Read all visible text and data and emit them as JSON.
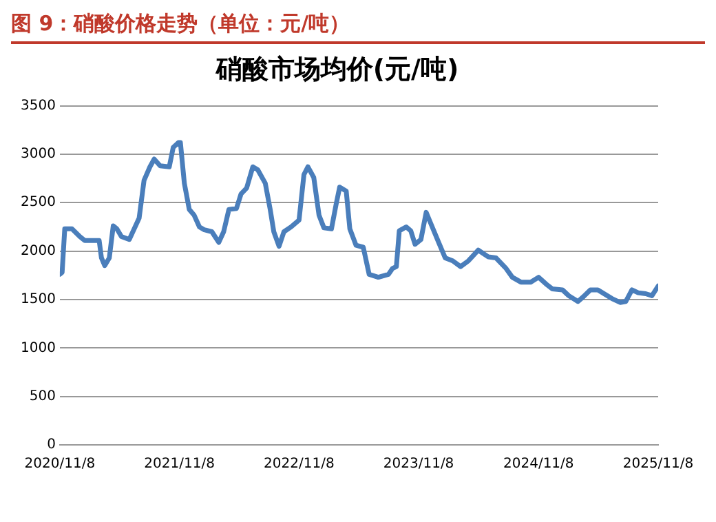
{
  "chart_data": {
    "type": "line",
    "title": "图 9：硝酸价格走势（单位：元/吨）",
    "subtitle": "硝酸市场均价(元/吨)",
    "x": [
      "2020-11-08",
      "2020-11-15",
      "2020-11-23",
      "2020-12-15",
      "2021-01-08",
      "2021-01-23",
      "2021-03-08",
      "2021-03-15",
      "2021-03-25",
      "2021-04-08",
      "2021-04-20",
      "2021-05-01",
      "2021-05-15",
      "2021-06-08",
      "2021-06-23",
      "2021-07-08",
      "2021-07-23",
      "2021-08-10",
      "2021-08-23",
      "2021-09-10",
      "2021-10-08",
      "2021-10-20",
      "2021-11-05",
      "2021-11-11",
      "2021-11-23",
      "2021-12-08",
      "2021-12-23",
      "2022-01-08",
      "2022-01-23",
      "2022-02-15",
      "2022-03-08",
      "2022-03-23",
      "2022-04-08",
      "2022-05-01",
      "2022-05-15",
      "2022-06-01",
      "2022-06-20",
      "2022-07-05",
      "2022-07-28",
      "2022-08-12",
      "2022-08-23",
      "2022-09-08",
      "2022-09-23",
      "2022-10-15",
      "2022-11-08",
      "2022-11-23",
      "2022-12-05",
      "2022-12-23",
      "2023-01-08",
      "2023-01-23",
      "2023-02-15",
      "2023-03-01",
      "2023-03-12",
      "2023-04-01",
      "2023-04-12",
      "2023-05-01",
      "2023-05-23",
      "2023-06-10",
      "2023-07-08",
      "2023-08-08",
      "2023-08-20",
      "2023-09-01",
      "2023-09-10",
      "2023-10-01",
      "2023-10-15",
      "2023-10-28",
      "2023-11-15",
      "2023-12-01",
      "2023-12-12",
      "2024-01-08",
      "2024-01-28",
      "2024-02-20",
      "2024-03-15",
      "2024-04-08",
      "2024-05-08",
      "2024-06-08",
      "2024-07-01",
      "2024-08-01",
      "2024-08-20",
      "2024-09-15",
      "2024-10-15",
      "2024-11-08",
      "2024-12-01",
      "2024-12-20",
      "2025-01-20",
      "2025-02-08",
      "2025-03-08",
      "2025-03-25",
      "2025-04-15",
      "2025-05-08",
      "2025-06-01",
      "2025-06-20",
      "2025-07-15",
      "2025-08-01",
      "2025-08-20",
      "2025-09-08",
      "2025-10-01",
      "2025-10-20",
      "2025-11-08"
    ],
    "series": [
      {
        "color": "#4a7ebb",
        "values": [
          1760,
          1780,
          2230,
          2230,
          2150,
          2110,
          2110,
          1930,
          1850,
          1930,
          2260,
          2230,
          2150,
          2120,
          2230,
          2340,
          2730,
          2870,
          2950,
          2880,
          2870,
          3070,
          3120,
          3120,
          2700,
          2430,
          2370,
          2250,
          2220,
          2200,
          2090,
          2200,
          2430,
          2440,
          2590,
          2650,
          2870,
          2840,
          2700,
          2430,
          2200,
          2050,
          2200,
          2250,
          2320,
          2790,
          2870,
          2760,
          2370,
          2240,
          2230,
          2480,
          2660,
          2620,
          2230,
          2060,
          2040,
          1760,
          1730,
          1760,
          1820,
          1840,
          2210,
          2250,
          2210,
          2070,
          2120,
          2400,
          2310,
          2090,
          1930,
          1900,
          1840,
          1900,
          2010,
          1940,
          1930,
          1820,
          1730,
          1680,
          1680,
          1730,
          1660,
          1610,
          1600,
          1540,
          1480,
          1530,
          1600,
          1600,
          1550,
          1510,
          1470,
          1480,
          1600,
          1570,
          1560,
          1540,
          1640
        ]
      }
    ],
    "xlim": [
      "2020-11-08",
      "2025-11-08"
    ],
    "xticks": [
      {
        "value": "2020-11-08",
        "label": "2020/11/8"
      },
      {
        "value": "2021-11-08",
        "label": "2021/11/8"
      },
      {
        "value": "2022-11-08",
        "label": "2022/11/8"
      },
      {
        "value": "2023-11-08",
        "label": "2023/11/8"
      },
      {
        "value": "2024-11-08",
        "label": "2024/11/8"
      },
      {
        "value": "2025-11-08",
        "label": "2025/11/8"
      }
    ],
    "ylim": [
      0,
      3500
    ],
    "yticks": [
      0,
      500,
      1000,
      1500,
      2000,
      2500,
      3000,
      3500
    ],
    "grid": "y",
    "legend": false,
    "marker": "none",
    "line_style": "solid"
  }
}
